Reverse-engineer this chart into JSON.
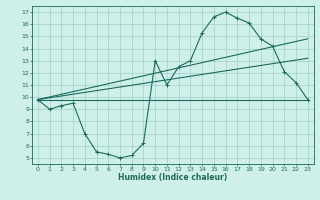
{
  "bg_color": "#cff0ea",
  "line_color": "#1a6b5a",
  "grid_color": "#a0cfc8",
  "xlabel": "Humidex (Indice chaleur)",
  "ylim": [
    4.5,
    17.5
  ],
  "xlim": [
    -0.5,
    23.5
  ],
  "yticks": [
    5,
    6,
    7,
    8,
    9,
    10,
    11,
    12,
    13,
    14,
    15,
    16,
    17
  ],
  "xticks": [
    0,
    1,
    2,
    3,
    4,
    5,
    6,
    7,
    8,
    9,
    10,
    11,
    12,
    13,
    14,
    15,
    16,
    17,
    18,
    19,
    20,
    21,
    22,
    23
  ],
  "curve_x": [
    0,
    1,
    2,
    3,
    4,
    5,
    6,
    7,
    8,
    9,
    10,
    11,
    12,
    13,
    14,
    15,
    16,
    17,
    18,
    19,
    20,
    21,
    22,
    23
  ],
  "curve_y": [
    9.8,
    9.0,
    9.3,
    9.5,
    7.0,
    5.5,
    5.3,
    5.0,
    5.2,
    6.2,
    13.0,
    11.0,
    12.5,
    13.0,
    15.3,
    16.6,
    17.0,
    16.5,
    16.1,
    14.8,
    14.2,
    12.1,
    11.2,
    9.8
  ],
  "line1_x": [
    0,
    23
  ],
  "line1_y": [
    9.8,
    14.8
  ],
  "line2_x": [
    0,
    23
  ],
  "line2_y": [
    9.8,
    13.2
  ],
  "line3_x": [
    0,
    23
  ],
  "line3_y": [
    9.8,
    9.8
  ],
  "figsize": [
    3.2,
    2.0
  ],
  "dpi": 100
}
